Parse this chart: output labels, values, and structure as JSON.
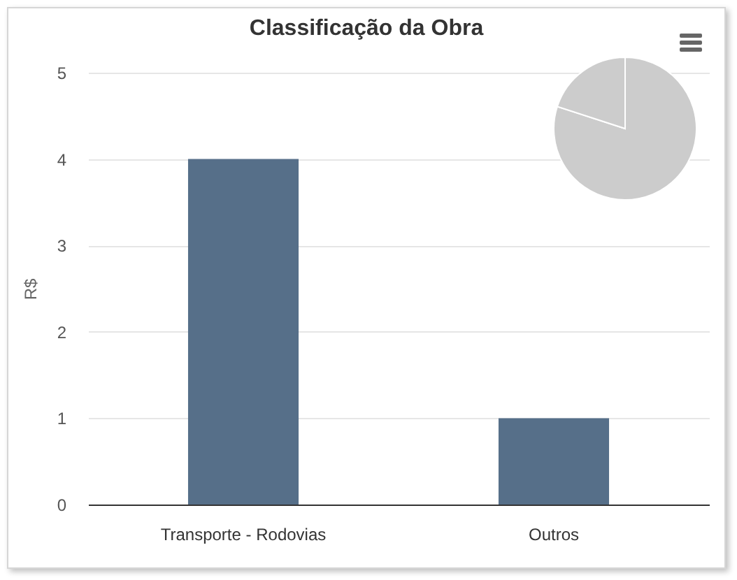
{
  "chart_data": [
    {
      "type": "bar",
      "title": "Classificação da Obra",
      "ylabel": "R$",
      "categories": [
        "Transporte - Rodovias",
        "Outros"
      ],
      "values": [
        4,
        1
      ],
      "color": "#566f89",
      "ylim": [
        0,
        5
      ],
      "yticks": [
        0,
        1,
        2,
        3,
        4,
        5
      ],
      "grid": "y"
    },
    {
      "type": "pie",
      "categories": [
        null,
        null
      ],
      "values": [
        80,
        20
      ],
      "colors": [
        "#cccccc",
        "#cccccc"
      ]
    }
  ]
}
